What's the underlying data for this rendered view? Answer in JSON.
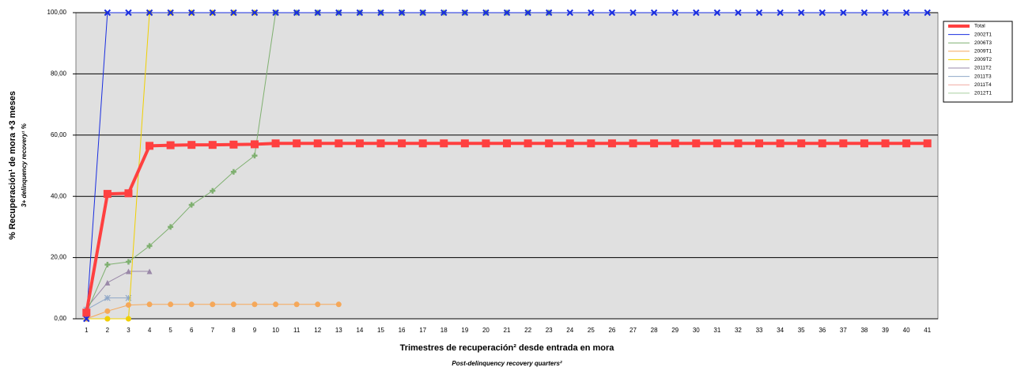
{
  "chart_data": {
    "type": "line",
    "y_label": "% Recuperación¹ de mora +3 meses",
    "y_label_en": "3+ delinquency recovery¹ %",
    "x_label": "Trimestres de recuperación² desde entrada en mora",
    "x_label_en": "Post-delinquency recovery quarters²",
    "categories": [
      1,
      2,
      3,
      4,
      5,
      6,
      7,
      8,
      9,
      10,
      11,
      12,
      13,
      14,
      15,
      16,
      17,
      18,
      19,
      20,
      21,
      22,
      23,
      24,
      25,
      26,
      27,
      28,
      29,
      30,
      31,
      32,
      33,
      34,
      35,
      36,
      37,
      38,
      39,
      40,
      41
    ],
    "ylim": [
      0,
      100
    ],
    "yticks": [
      {
        "value": 0,
        "label": "0,00"
      },
      {
        "value": 20,
        "label": "20,00"
      },
      {
        "value": 40,
        "label": "40,00"
      },
      {
        "value": 60,
        "label": "60,00"
      },
      {
        "value": 80,
        "label": "80,00"
      },
      {
        "value": 100,
        "label": "100,00"
      }
    ],
    "grid": true,
    "legend": "right",
    "series": [
      {
        "name": "Total",
        "color": "#ff4040",
        "marker": "square",
        "width": 4,
        "values": [
          2,
          40.8,
          41,
          56.5,
          56.7,
          56.8,
          56.8,
          56.9,
          57,
          57.3,
          57.3,
          57.3,
          57.3,
          57.3,
          57.3,
          57.3,
          57.3,
          57.3,
          57.3,
          57.3,
          57.3,
          57.3,
          57.3,
          57.3,
          57.3,
          57.3,
          57.3,
          57.3,
          57.3,
          57.3,
          57.3,
          57.3,
          57.3,
          57.3,
          57.3,
          57.3,
          57.3,
          57.3,
          57.3,
          57.3,
          57.3
        ]
      },
      {
        "name": "2002T1",
        "color": "#1a2ee0",
        "marker": "x",
        "width": 1,
        "values": [
          0,
          100,
          100,
          100,
          100,
          100,
          100,
          100,
          100,
          100,
          100,
          100,
          100,
          100,
          100,
          100,
          100,
          100,
          100,
          100,
          100,
          100,
          100,
          100,
          100,
          100,
          100,
          100,
          100,
          100,
          100,
          100,
          100,
          100,
          100,
          100,
          100,
          100,
          100,
          100,
          100
        ]
      },
      {
        "name": "2006T3",
        "color": "#7fb070",
        "marker": "plus",
        "width": 1,
        "values": [
          2,
          17.7,
          18.6,
          23.8,
          30,
          37.2,
          41.8,
          48,
          53.3,
          100,
          100,
          100,
          100,
          100,
          100,
          100,
          100,
          100,
          100,
          100,
          100,
          100,
          100,
          null,
          null,
          null,
          null,
          null,
          null,
          null,
          null,
          null,
          null,
          null,
          null,
          null,
          null,
          null,
          null,
          null,
          null
        ]
      },
      {
        "name": "2009T1",
        "color": "#f5a85a",
        "marker": "circle",
        "width": 1,
        "values": [
          0,
          2.5,
          4.5,
          4.7,
          4.7,
          4.7,
          4.7,
          4.7,
          4.7,
          4.7,
          4.7,
          4.7,
          4.7,
          null,
          null,
          null,
          null,
          null,
          null,
          null,
          null,
          null,
          null,
          null,
          null,
          null,
          null,
          null,
          null,
          null,
          null,
          null,
          null,
          null,
          null,
          null,
          null,
          null,
          null,
          null,
          null
        ]
      },
      {
        "name": "2009T2",
        "color": "#f0d000",
        "marker": "circle",
        "width": 1,
        "values": [
          0,
          0,
          0,
          100,
          100,
          100,
          100,
          100,
          100,
          100,
          100,
          100,
          null,
          null,
          null,
          null,
          null,
          null,
          null,
          null,
          null,
          null,
          null,
          null,
          null,
          null,
          null,
          null,
          null,
          null,
          null,
          null,
          null,
          null,
          null,
          null,
          null,
          null,
          null,
          null,
          null
        ]
      },
      {
        "name": "2011T2",
        "color": "#9a88a8",
        "marker": "triangle",
        "width": 1,
        "values": [
          3.5,
          11.8,
          15.5,
          15.5,
          null,
          null,
          null,
          null,
          null,
          null,
          null,
          null,
          null,
          null,
          null,
          null,
          null,
          null,
          null,
          null,
          null,
          null,
          null,
          null,
          null,
          null,
          null,
          null,
          null,
          null,
          null,
          null,
          null,
          null,
          null,
          null,
          null,
          null,
          null,
          null,
          null
        ]
      },
      {
        "name": "2011T3",
        "color": "#90a8c8",
        "marker": "star",
        "width": 1,
        "values": [
          3,
          6.8,
          6.8,
          null,
          null,
          null,
          null,
          null,
          null,
          null,
          null,
          null,
          null,
          null,
          null,
          null,
          null,
          null,
          null,
          null,
          null,
          null,
          null,
          null,
          null,
          null,
          null,
          null,
          null,
          null,
          null,
          null,
          null,
          null,
          null,
          null,
          null,
          null,
          null,
          null,
          null
        ]
      },
      {
        "name": "2011T4",
        "color": "#f0a8a0",
        "marker": "circle",
        "width": 1,
        "values": [
          0,
          0,
          null,
          null,
          null,
          null,
          null,
          null,
          null,
          null,
          null,
          null,
          null,
          null,
          null,
          null,
          null,
          null,
          null,
          null,
          null,
          null,
          null,
          null,
          null,
          null,
          null,
          null,
          null,
          null,
          null,
          null,
          null,
          null,
          null,
          null,
          null,
          null,
          null,
          null,
          null
        ]
      },
      {
        "name": "2012T1",
        "color": "#a8d0a0",
        "marker": "square",
        "width": 1,
        "values": [
          0,
          null,
          null,
          null,
          null,
          null,
          null,
          null,
          null,
          null,
          null,
          null,
          null,
          null,
          null,
          null,
          null,
          null,
          null,
          null,
          null,
          null,
          null,
          null,
          null,
          null,
          null,
          null,
          null,
          null,
          null,
          null,
          null,
          null,
          null,
          null,
          null,
          null,
          null,
          null,
          null
        ]
      }
    ]
  }
}
